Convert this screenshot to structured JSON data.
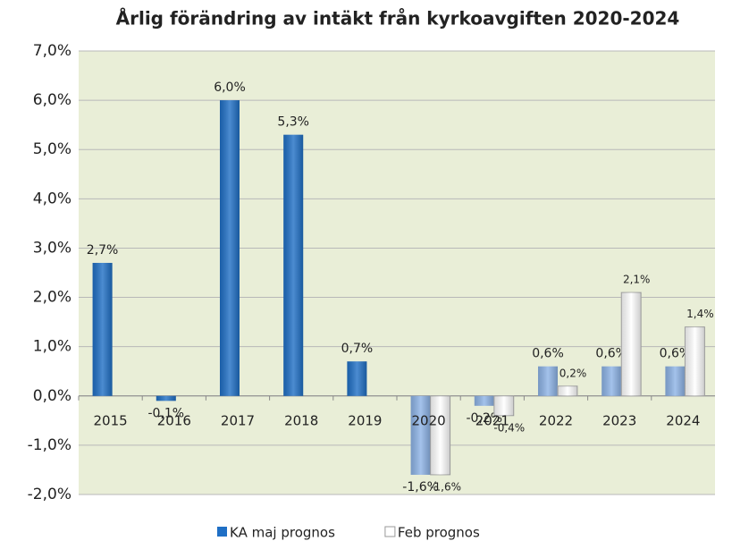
{
  "chart_data": {
    "type": "bar",
    "title": "Årlig förändring av intäkt från kyrkoavgiften 2020-2024",
    "categories": [
      "2015",
      "2016",
      "2017",
      "2018",
      "2019",
      "2020",
      "2021",
      "2022",
      "2023",
      "2024"
    ],
    "series": [
      {
        "name": "KA maj prognos",
        "color": "#1f6fc5",
        "colors": [
          "#1f6fc5",
          "#1f6fc5",
          "#1f6fc5",
          "#1f6fc5",
          "#1f6fc5",
          "#8db3e6",
          "#8db3e6",
          "#8db3e6",
          "#8db3e6",
          "#8db3e6"
        ],
        "values": [
          2.7,
          -0.1,
          6.0,
          5.3,
          0.7,
          -1.6,
          -0.2,
          0.6,
          0.6,
          0.6
        ],
        "value_labels": [
          "2,7%",
          "-0,1%",
          "6,0%",
          "5,3%",
          "0,7%",
          "-1,6%",
          "-0,2%",
          "0,6%",
          "0,6%",
          "0,6%"
        ]
      },
      {
        "name": "Feb prognos",
        "color": "#ffffff",
        "values": [
          null,
          null,
          null,
          null,
          null,
          -1.6,
          -0.4,
          0.2,
          2.1,
          1.4
        ],
        "value_labels": [
          null,
          null,
          null,
          null,
          null,
          "-1,6%",
          "-0,4%",
          "0,2%",
          "2,1%",
          "1,4%"
        ]
      }
    ],
    "ylim": [
      -2,
      7
    ],
    "yticks": [
      {
        "value": -2,
        "label": "-2,0%"
      },
      {
        "value": -1,
        "label": "-1,0%"
      },
      {
        "value": 0,
        "label": "0,0%"
      },
      {
        "value": 1,
        "label": "1,0%"
      },
      {
        "value": 2,
        "label": "2,0%"
      },
      {
        "value": 3,
        "label": "3,0%"
      },
      {
        "value": 4,
        "label": "4,0%"
      },
      {
        "value": 5,
        "label": "5,0%"
      },
      {
        "value": 6,
        "label": "6,0%"
      },
      {
        "value": 7,
        "label": "7,0%"
      }
    ],
    "grid": true,
    "legend": "bottom"
  }
}
